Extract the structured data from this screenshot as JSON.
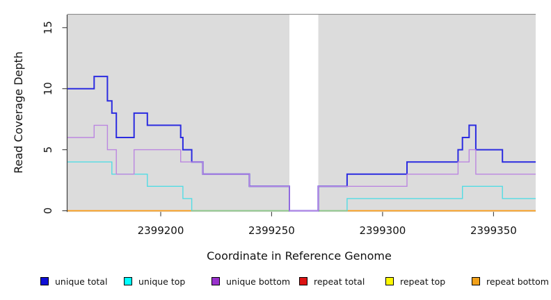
{
  "chart_data": {
    "type": "line",
    "subtype": "step-coverage",
    "title": "",
    "xlabel": "Coordinate in Reference Genome",
    "ylabel": "Read Coverage Depth",
    "xlim": [
      2399158,
      2399369
    ],
    "ylim": [
      0,
      16
    ],
    "x_ticks": [
      2399200,
      2399250,
      2399300,
      2399350
    ],
    "y_ticks": [
      0,
      5,
      10,
      15
    ],
    "grid": false,
    "legend_position": "bottom",
    "plot_bg_color": "#dcdcdc",
    "masked_region": {
      "x_start": 2399258,
      "x_end": 2399271,
      "color": "#ffffff"
    },
    "zero_overlap_segments": {
      "color": "#8bc98b",
      "ranges": [
        [
          2399214,
          2399258
        ],
        [
          2399271,
          2399284
        ]
      ]
    },
    "series": [
      {
        "name": "unique total",
        "line_color": "#2b2be0",
        "legend_color": "#0f0fd6",
        "line_width": 2,
        "segments": [
          [
            2399158,
            2399170,
            10
          ],
          [
            2399170,
            2399176,
            11
          ],
          [
            2399176,
            2399178,
            9
          ],
          [
            2399178,
            2399180,
            8
          ],
          [
            2399180,
            2399188,
            6
          ],
          [
            2399188,
            2399194,
            8
          ],
          [
            2399194,
            2399209,
            7
          ],
          [
            2399209,
            2399210,
            6
          ],
          [
            2399210,
            2399214,
            5
          ],
          [
            2399214,
            2399219,
            4
          ],
          [
            2399219,
            2399240,
            3
          ],
          [
            2399240,
            2399258,
            2
          ],
          [
            2399258,
            2399271,
            0
          ],
          [
            2399271,
            2399284,
            2
          ],
          [
            2399284,
            2399311,
            3
          ],
          [
            2399311,
            2399334,
            4
          ],
          [
            2399334,
            2399336,
            5
          ],
          [
            2399336,
            2399339,
            6
          ],
          [
            2399339,
            2399342,
            7
          ],
          [
            2399342,
            2399354,
            5
          ],
          [
            2399354,
            2399369,
            4
          ]
        ]
      },
      {
        "name": "unique top",
        "line_color": "#52dce4",
        "legend_color": "#00ffff",
        "line_width": 1.4,
        "segments": [
          [
            2399158,
            2399178,
            4
          ],
          [
            2399178,
            2399194,
            3
          ],
          [
            2399194,
            2399210,
            2
          ],
          [
            2399210,
            2399214,
            1
          ],
          [
            2399214,
            2399284,
            0
          ],
          [
            2399284,
            2399336,
            1
          ],
          [
            2399336,
            2399354,
            2
          ],
          [
            2399354,
            2399369,
            1
          ]
        ]
      },
      {
        "name": "unique bottom",
        "line_color": "#bb86e0",
        "legend_color": "#9932cc",
        "line_width": 1.4,
        "segments": [
          [
            2399158,
            2399170,
            6
          ],
          [
            2399170,
            2399176,
            7
          ],
          [
            2399176,
            2399180,
            5
          ],
          [
            2399180,
            2399188,
            3
          ],
          [
            2399188,
            2399209,
            5
          ],
          [
            2399209,
            2399219,
            4
          ],
          [
            2399219,
            2399240,
            3
          ],
          [
            2399240,
            2399258,
            2
          ],
          [
            2399258,
            2399271,
            0
          ],
          [
            2399271,
            2399311,
            2
          ],
          [
            2399311,
            2399334,
            3
          ],
          [
            2399334,
            2399339,
            4
          ],
          [
            2399339,
            2399342,
            5
          ],
          [
            2399342,
            2399369,
            3
          ]
        ]
      },
      {
        "name": "repeat total",
        "line_color": "#dd1414",
        "legend_color": "#dd1414",
        "line_width": 1.3,
        "segments": [
          [
            2399158,
            2399369,
            0
          ]
        ]
      },
      {
        "name": "repeat top",
        "line_color": "#fdf800",
        "legend_color": "#fdf800",
        "line_width": 1.3,
        "segments": [
          [
            2399158,
            2399369,
            0
          ]
        ]
      },
      {
        "name": "repeat bottom",
        "line_color": "#ff9d14",
        "legend_color": "#f2a11a",
        "line_width": 1.6,
        "segments": [
          [
            2399158,
            2399369,
            0
          ]
        ]
      }
    ]
  }
}
